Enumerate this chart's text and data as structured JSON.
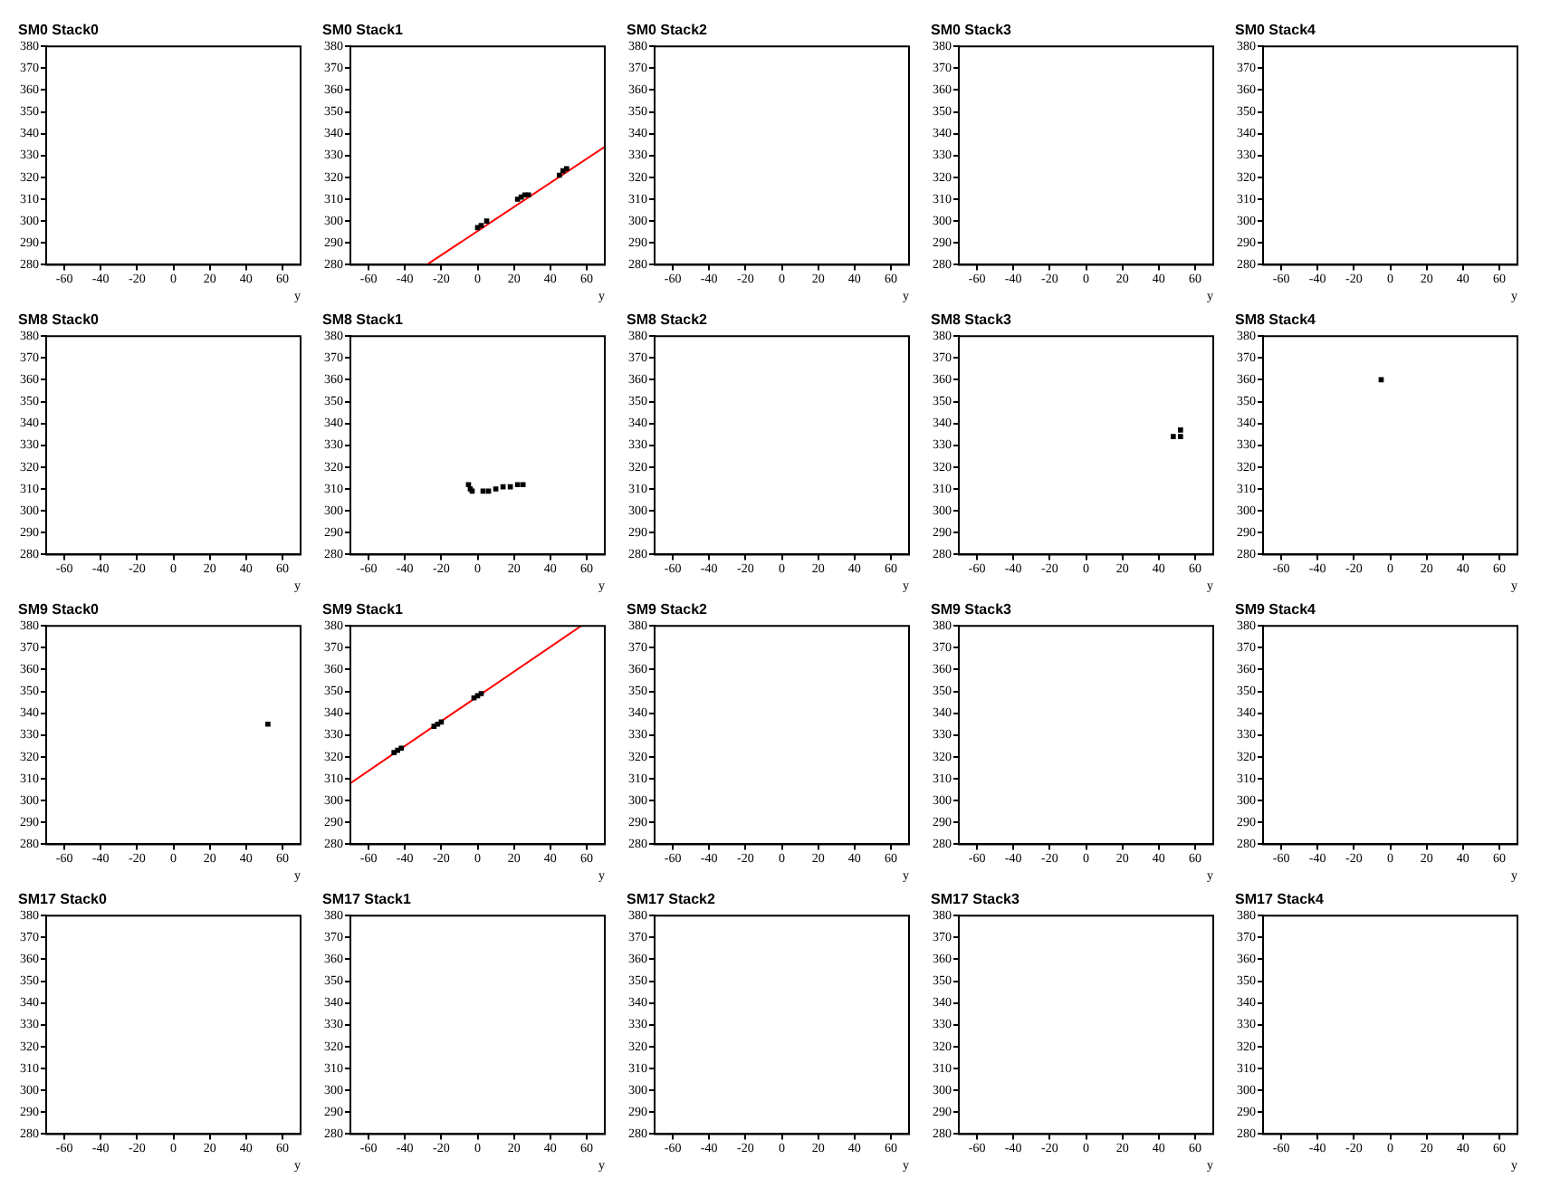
{
  "chart_data": [
    {
      "type": "scatter",
      "title": "SM0 Stack0",
      "xlabel": "y",
      "xlim": [
        -70,
        70
      ],
      "ylim": [
        280,
        380
      ],
      "xticks": [
        -60,
        -40,
        -20,
        0,
        20,
        40,
        60
      ],
      "yticks": [
        280,
        290,
        300,
        310,
        320,
        330,
        340,
        350,
        360,
        370,
        380
      ],
      "grid": false
    },
    {
      "type": "scatter",
      "title": "SM0 Stack1",
      "xlabel": "y",
      "xlim": [
        -70,
        70
      ],
      "ylim": [
        280,
        380
      ],
      "xticks": [
        -60,
        -40,
        -20,
        0,
        20,
        40,
        60
      ],
      "yticks": [
        280,
        290,
        300,
        310,
        320,
        330,
        340,
        350,
        360,
        370,
        380
      ],
      "grid": false,
      "series": [
        {
          "type": "scatter",
          "color": "#000000",
          "marker": "square",
          "x": [
            0,
            2,
            5,
            22,
            24,
            26,
            28,
            45,
            47,
            49
          ],
          "values": [
            297,
            298,
            300,
            310,
            311,
            312,
            312,
            321,
            323,
            324
          ]
        },
        {
          "type": "line",
          "color": "#ff0000",
          "marker": "none",
          "x": [
            -28,
            70
          ],
          "values": [
            280,
            334
          ]
        }
      ]
    },
    {
      "type": "scatter",
      "title": "SM0 Stack2",
      "xlabel": "y",
      "xlim": [
        -70,
        70
      ],
      "ylim": [
        280,
        380
      ],
      "xticks": [
        -60,
        -40,
        -20,
        0,
        20,
        40,
        60
      ],
      "yticks": [
        280,
        290,
        300,
        310,
        320,
        330,
        340,
        350,
        360,
        370,
        380
      ],
      "grid": false
    },
    {
      "type": "scatter",
      "title": "SM0 Stack3",
      "xlabel": "y",
      "xlim": [
        -70,
        70
      ],
      "ylim": [
        280,
        380
      ],
      "xticks": [
        -60,
        -40,
        -20,
        0,
        20,
        40,
        60
      ],
      "yticks": [
        280,
        290,
        300,
        310,
        320,
        330,
        340,
        350,
        360,
        370,
        380
      ],
      "grid": false
    },
    {
      "type": "scatter",
      "title": "SM0 Stack4",
      "xlabel": "y",
      "xlim": [
        -70,
        70
      ],
      "ylim": [
        280,
        380
      ],
      "xticks": [
        -60,
        -40,
        -20,
        0,
        20,
        40,
        60
      ],
      "yticks": [
        280,
        290,
        300,
        310,
        320,
        330,
        340,
        350,
        360,
        370,
        380
      ],
      "grid": false
    },
    {
      "type": "scatter",
      "title": "SM8 Stack0",
      "xlabel": "y",
      "xlim": [
        -70,
        70
      ],
      "ylim": [
        280,
        380
      ],
      "xticks": [
        -60,
        -40,
        -20,
        0,
        20,
        40,
        60
      ],
      "yticks": [
        280,
        290,
        300,
        310,
        320,
        330,
        340,
        350,
        360,
        370,
        380
      ],
      "grid": false
    },
    {
      "type": "scatter",
      "title": "SM8 Stack1",
      "xlabel": "y",
      "xlim": [
        -70,
        70
      ],
      "ylim": [
        280,
        380
      ],
      "xticks": [
        -60,
        -40,
        -20,
        0,
        20,
        40,
        60
      ],
      "yticks": [
        280,
        290,
        300,
        310,
        320,
        330,
        340,
        350,
        360,
        370,
        380
      ],
      "grid": false,
      "series": [
        {
          "type": "scatter",
          "color": "#000000",
          "marker": "square",
          "x": [
            -5,
            -4,
            -3,
            3,
            6,
            10,
            14,
            18,
            22,
            25
          ],
          "values": [
            312,
            310,
            309,
            309,
            309,
            310,
            311,
            311,
            312,
            312
          ]
        }
      ]
    },
    {
      "type": "scatter",
      "title": "SM8 Stack2",
      "xlabel": "y",
      "xlim": [
        -70,
        70
      ],
      "ylim": [
        280,
        380
      ],
      "xticks": [
        -60,
        -40,
        -20,
        0,
        20,
        40,
        60
      ],
      "yticks": [
        280,
        290,
        300,
        310,
        320,
        330,
        340,
        350,
        360,
        370,
        380
      ],
      "grid": false
    },
    {
      "type": "scatter",
      "title": "SM8 Stack3",
      "xlabel": "y",
      "xlim": [
        -70,
        70
      ],
      "ylim": [
        280,
        380
      ],
      "xticks": [
        -60,
        -40,
        -20,
        0,
        20,
        40,
        60
      ],
      "yticks": [
        280,
        290,
        300,
        310,
        320,
        330,
        340,
        350,
        360,
        370,
        380
      ],
      "grid": false,
      "series": [
        {
          "type": "scatter",
          "color": "#000000",
          "marker": "square",
          "x": [
            48,
            52,
            52
          ],
          "values": [
            334,
            334,
            337
          ]
        }
      ]
    },
    {
      "type": "scatter",
      "title": "SM8 Stack4",
      "xlabel": "y",
      "xlim": [
        -70,
        70
      ],
      "ylim": [
        280,
        380
      ],
      "xticks": [
        -60,
        -40,
        -20,
        0,
        20,
        40,
        60
      ],
      "yticks": [
        280,
        290,
        300,
        310,
        320,
        330,
        340,
        350,
        360,
        370,
        380
      ],
      "grid": false,
      "series": [
        {
          "type": "scatter",
          "color": "#000000",
          "marker": "square",
          "x": [
            -5
          ],
          "values": [
            360
          ]
        }
      ]
    },
    {
      "type": "scatter",
      "title": "SM9 Stack0",
      "xlabel": "y",
      "xlim": [
        -70,
        70
      ],
      "ylim": [
        280,
        380
      ],
      "xticks": [
        -60,
        -40,
        -20,
        0,
        20,
        40,
        60
      ],
      "yticks": [
        280,
        290,
        300,
        310,
        320,
        330,
        340,
        350,
        360,
        370,
        380
      ],
      "grid": false,
      "series": [
        {
          "type": "scatter",
          "color": "#000000",
          "marker": "square",
          "x": [
            52
          ],
          "values": [
            335
          ]
        }
      ]
    },
    {
      "type": "scatter",
      "title": "SM9 Stack1",
      "xlabel": "y",
      "xlim": [
        -70,
        70
      ],
      "ylim": [
        280,
        380
      ],
      "xticks": [
        -60,
        -40,
        -20,
        0,
        20,
        40,
        60
      ],
      "yticks": [
        280,
        290,
        300,
        310,
        320,
        330,
        340,
        350,
        360,
        370,
        380
      ],
      "grid": false,
      "series": [
        {
          "type": "scatter",
          "color": "#000000",
          "marker": "square",
          "x": [
            -46,
            -44,
            -42,
            -24,
            -22,
            -20,
            -2,
            0,
            2
          ],
          "values": [
            322,
            323,
            324,
            334,
            335,
            336,
            347,
            348,
            349
          ]
        },
        {
          "type": "line",
          "color": "#ff0000",
          "marker": "none",
          "x": [
            -70,
            57
          ],
          "values": [
            308,
            380
          ]
        }
      ]
    },
    {
      "type": "scatter",
      "title": "SM9 Stack2",
      "xlabel": "y",
      "xlim": [
        -70,
        70
      ],
      "ylim": [
        280,
        380
      ],
      "xticks": [
        -60,
        -40,
        -20,
        0,
        20,
        40,
        60
      ],
      "yticks": [
        280,
        290,
        300,
        310,
        320,
        330,
        340,
        350,
        360,
        370,
        380
      ],
      "grid": false
    },
    {
      "type": "scatter",
      "title": "SM9 Stack3",
      "xlabel": "y",
      "xlim": [
        -70,
        70
      ],
      "ylim": [
        280,
        380
      ],
      "xticks": [
        -60,
        -40,
        -20,
        0,
        20,
        40,
        60
      ],
      "yticks": [
        280,
        290,
        300,
        310,
        320,
        330,
        340,
        350,
        360,
        370,
        380
      ],
      "grid": false
    },
    {
      "type": "scatter",
      "title": "SM9 Stack4",
      "xlabel": "y",
      "xlim": [
        -70,
        70
      ],
      "ylim": [
        280,
        380
      ],
      "xticks": [
        -60,
        -40,
        -20,
        0,
        20,
        40,
        60
      ],
      "yticks": [
        280,
        290,
        300,
        310,
        320,
        330,
        340,
        350,
        360,
        370,
        380
      ],
      "grid": false
    },
    {
      "type": "scatter",
      "title": "SM17 Stack0",
      "xlabel": "y",
      "xlim": [
        -70,
        70
      ],
      "ylim": [
        280,
        380
      ],
      "xticks": [
        -60,
        -40,
        -20,
        0,
        20,
        40,
        60
      ],
      "yticks": [
        280,
        290,
        300,
        310,
        320,
        330,
        340,
        350,
        360,
        370,
        380
      ],
      "grid": false
    },
    {
      "type": "scatter",
      "title": "SM17 Stack1",
      "xlabel": "y",
      "xlim": [
        -70,
        70
      ],
      "ylim": [
        280,
        380
      ],
      "xticks": [
        -60,
        -40,
        -20,
        0,
        20,
        40,
        60
      ],
      "yticks": [
        280,
        290,
        300,
        310,
        320,
        330,
        340,
        350,
        360,
        370,
        380
      ],
      "grid": false
    },
    {
      "type": "scatter",
      "title": "SM17 Stack2",
      "xlabel": "y",
      "xlim": [
        -70,
        70
      ],
      "ylim": [
        280,
        380
      ],
      "xticks": [
        -60,
        -40,
        -20,
        0,
        20,
        40,
        60
      ],
      "yticks": [
        280,
        290,
        300,
        310,
        320,
        330,
        340,
        350,
        360,
        370,
        380
      ],
      "grid": false
    },
    {
      "type": "scatter",
      "title": "SM17 Stack3",
      "xlabel": "y",
      "xlim": [
        -70,
        70
      ],
      "ylim": [
        280,
        380
      ],
      "xticks": [
        -60,
        -40,
        -20,
        0,
        20,
        40,
        60
      ],
      "yticks": [
        280,
        290,
        300,
        310,
        320,
        330,
        340,
        350,
        360,
        370,
        380
      ],
      "grid": false
    },
    {
      "type": "scatter",
      "title": "SM17 Stack4",
      "xlabel": "y",
      "xlim": [
        -70,
        70
      ],
      "ylim": [
        280,
        380
      ],
      "xticks": [
        -60,
        -40,
        -20,
        0,
        20,
        40,
        60
      ],
      "yticks": [
        280,
        290,
        300,
        310,
        320,
        330,
        340,
        350,
        360,
        370,
        380
      ],
      "grid": false
    }
  ]
}
